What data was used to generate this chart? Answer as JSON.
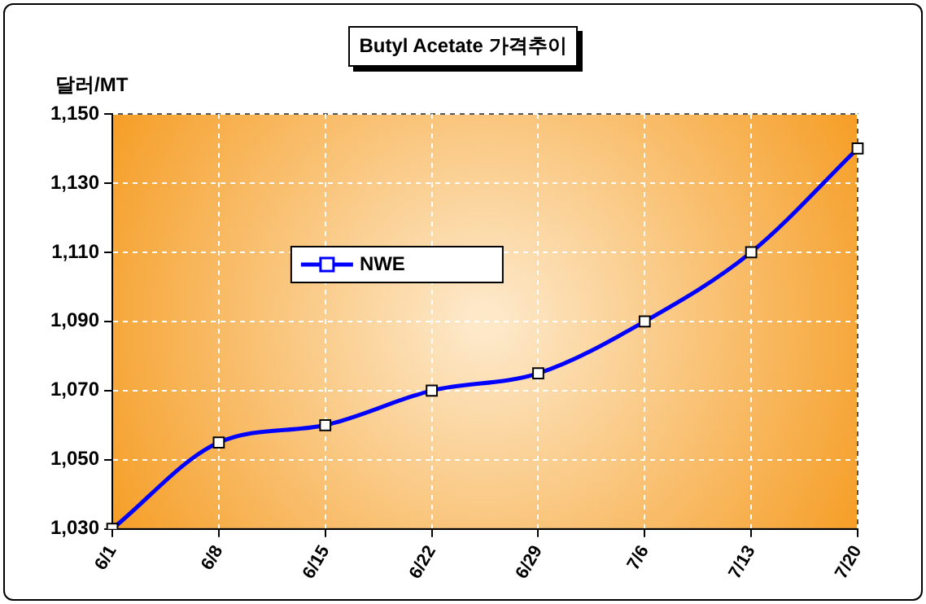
{
  "chart_data": {
    "type": "line",
    "title": "Butyl Acetate 가격추이",
    "ylabel": "달러/MT",
    "categories": [
      "6/1",
      "6/8",
      "6/15",
      "6/22",
      "6/29",
      "7/6",
      "7/13",
      "7/20"
    ],
    "series": [
      {
        "name": "NWE",
        "color": "#0000ff",
        "values": [
          1030,
          1055,
          1060,
          1070,
          1075,
          1090,
          1110,
          1140
        ]
      }
    ],
    "ylim": [
      1030,
      1150
    ],
    "yticks": [
      {
        "value": 1030,
        "label": "1,030"
      },
      {
        "value": 1050,
        "label": "1,050"
      },
      {
        "value": 1070,
        "label": "1,070"
      },
      {
        "value": 1090,
        "label": "1,090"
      },
      {
        "value": 1110,
        "label": "1,110"
      },
      {
        "value": 1130,
        "label": "1,130"
      },
      {
        "value": 1150,
        "label": "1,150"
      }
    ],
    "grid": true,
    "legend": "center left",
    "marker": "square",
    "line_style": "solid"
  }
}
